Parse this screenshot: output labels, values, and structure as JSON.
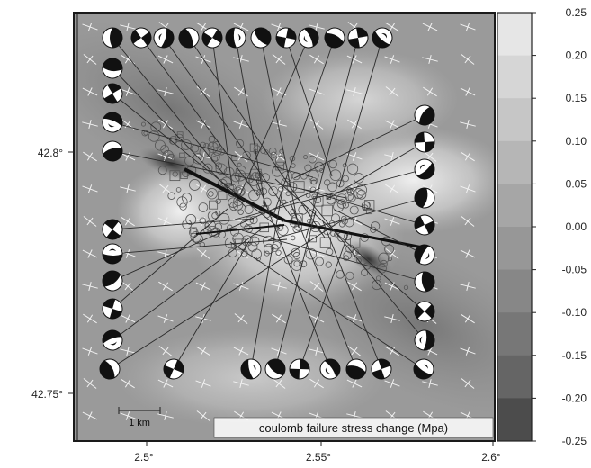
{
  "map": {
    "title": "coulomb failure stress change (Mpa)",
    "scale_label": "1 km",
    "x_ticks": [
      "2.5°",
      "2.55°",
      "2.6°"
    ],
    "y_ticks": [
      "42.8°",
      "42.75°"
    ],
    "colors": {
      "frame": "#1a1a1a",
      "line": "#2a2a2a",
      "beach_dark": "#111111",
      "beach_light": "#ffffff"
    }
  },
  "colorbar": {
    "ticks": [
      "0.25",
      "0.20",
      "0.15",
      "0.10",
      "0.05",
      "0.00",
      "-0.05",
      "-0.10",
      "-0.15",
      "-0.20",
      "-0.25"
    ],
    "colors": [
      "#e6e6e6",
      "#d6d6d6",
      "#c6c6c6",
      "#b6b6b6",
      "#a6a6a6",
      "#979797",
      "#878787",
      "#777777",
      "#656565",
      "#4c4c4c"
    ]
  }
}
